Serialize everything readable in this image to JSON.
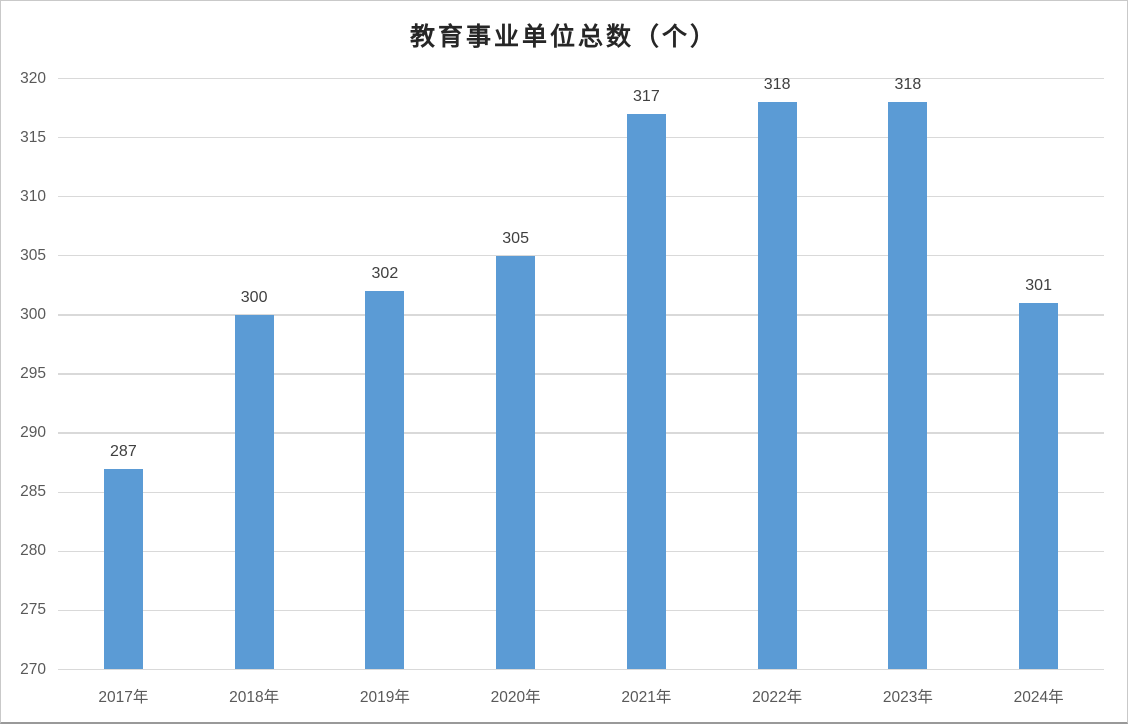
{
  "chart_data": {
    "type": "bar",
    "title": "教育事业单位总数（个）",
    "categories": [
      "2017年",
      "2018年",
      "2019年",
      "2020年",
      "2021年",
      "2022年",
      "2023年",
      "2024年"
    ],
    "values": [
      287,
      300,
      302,
      305,
      317,
      318,
      318,
      301
    ],
    "yticks": [
      270,
      275,
      280,
      285,
      290,
      295,
      300,
      305,
      310,
      315,
      320
    ],
    "ylim": [
      270,
      320
    ],
    "grid": true,
    "legend": "none",
    "colors": {
      "bar": "#5B9BD5",
      "grid": "#D9D9D9",
      "axis_label": "#595959",
      "value_label": "#404040",
      "title": "#262626",
      "border": "#C9C9C9"
    }
  }
}
